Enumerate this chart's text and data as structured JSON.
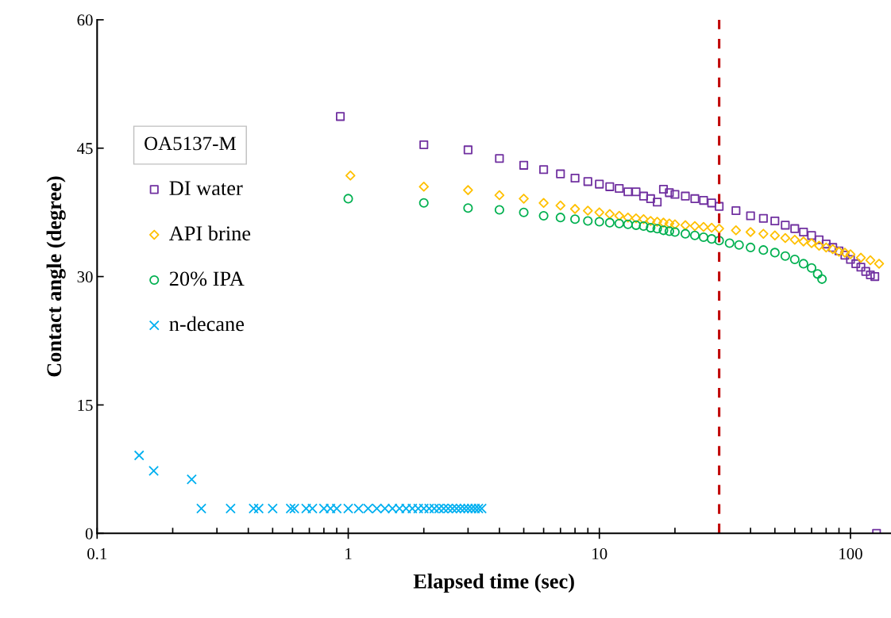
{
  "chart_data": {
    "type": "scatter",
    "xlabel": "Elapsed time (sec)",
    "ylabel": "Contact angle (degree)",
    "legend_title": "OA5137-M",
    "legend": "top left",
    "log": "x",
    "grid": false,
    "xlim": [
      0.1,
      145
    ],
    "xticks": [
      0.1,
      1,
      10,
      100
    ],
    "ylim": [
      0,
      60
    ],
    "yticks": [
      0,
      15,
      30,
      45,
      60
    ],
    "ref_lines": [
      {
        "axis": "x",
        "value": 30,
        "color": "#c00000",
        "line_style": "dashed"
      }
    ],
    "series": [
      {
        "name": "DI water",
        "color": "#7030a0",
        "marker": "square",
        "x": [
          0.93,
          2,
          3,
          4,
          5,
          6,
          7,
          8,
          9,
          10,
          11,
          12,
          13,
          14,
          15,
          16,
          17,
          18,
          19,
          20,
          22,
          24,
          26,
          28,
          30,
          35,
          40,
          45,
          50,
          55,
          60,
          65,
          70,
          75,
          80,
          85,
          90,
          95,
          100,
          105,
          110,
          115,
          120,
          125,
          127
        ],
        "values": [
          48.7,
          45.4,
          44.8,
          43.8,
          43.0,
          42.5,
          42.0,
          41.5,
          41.1,
          40.8,
          40.5,
          40.3,
          39.9,
          39.9,
          39.4,
          39.1,
          38.7,
          40.2,
          39.8,
          39.6,
          39.4,
          39.1,
          38.9,
          38.6,
          38.2,
          37.7,
          37.1,
          36.8,
          36.5,
          36.0,
          35.6,
          35.2,
          34.8,
          34.3,
          33.8,
          33.4,
          33.0,
          32.5,
          32.0,
          31.5,
          31.1,
          30.6,
          30.2,
          30.0,
          0
        ]
      },
      {
        "name": "API brine",
        "color": "#ffc000",
        "marker": "diamond",
        "x": [
          1.02,
          2,
          3,
          4,
          5,
          6,
          7,
          8,
          9,
          10,
          11,
          12,
          13,
          14,
          15,
          16,
          17,
          18,
          19,
          20,
          22,
          24,
          26,
          28,
          30,
          35,
          40,
          45,
          50,
          55,
          60,
          65,
          70,
          75,
          80,
          85,
          90,
          95,
          100,
          110,
          120,
          130
        ],
        "values": [
          41.8,
          40.5,
          40.1,
          39.5,
          39.1,
          38.6,
          38.3,
          37.9,
          37.7,
          37.5,
          37.3,
          37.1,
          36.9,
          36.8,
          36.7,
          36.5,
          36.4,
          36.3,
          36.2,
          36.1,
          36.0,
          35.9,
          35.8,
          35.7,
          35.6,
          35.4,
          35.2,
          35.0,
          34.8,
          34.5,
          34.3,
          34.1,
          33.9,
          33.6,
          33.4,
          33.2,
          32.9,
          32.8,
          32.6,
          32.2,
          31.9,
          31.5
        ]
      },
      {
        "name": "20% IPA",
        "color": "#00b050",
        "marker": "circle",
        "x": [
          1,
          2,
          3,
          4,
          5,
          6,
          7,
          8,
          9,
          10,
          11,
          12,
          13,
          14,
          15,
          16,
          17,
          18,
          19,
          20,
          22,
          24,
          26,
          28,
          30,
          33,
          36,
          40,
          45,
          50,
          55,
          60,
          65,
          70,
          74,
          77
        ],
        "values": [
          39.1,
          38.6,
          38.0,
          37.8,
          37.5,
          37.1,
          36.9,
          36.7,
          36.5,
          36.4,
          36.3,
          36.2,
          36.1,
          36.0,
          35.9,
          35.7,
          35.6,
          35.4,
          35.3,
          35.2,
          35.0,
          34.8,
          34.6,
          34.4,
          34.2,
          33.9,
          33.7,
          33.4,
          33.1,
          32.8,
          32.4,
          32.0,
          31.5,
          31.0,
          30.3,
          29.7
        ]
      },
      {
        "name": "n-decane",
        "color": "#00b0f0",
        "marker": "cross",
        "x": [
          0.147,
          0.168,
          0.238,
          0.26,
          0.34,
          0.42,
          0.44,
          0.5,
          0.59,
          0.61,
          0.68,
          0.72,
          0.8,
          0.85,
          0.9,
          1.0,
          1.1,
          1.2,
          1.3,
          1.4,
          1.5,
          1.6,
          1.7,
          1.8,
          1.9,
          2.0,
          2.1,
          2.2,
          2.3,
          2.4,
          2.5,
          2.6,
          2.7,
          2.8,
          2.9,
          3.0,
          3.1,
          3.2,
          3.3,
          3.4
        ],
        "values": [
          9.1,
          7.3,
          6.3,
          2.9,
          2.9,
          2.9,
          2.9,
          2.9,
          2.9,
          2.9,
          2.9,
          2.9,
          2.9,
          2.9,
          2.9,
          2.9,
          2.9,
          2.9,
          2.9,
          2.9,
          2.9,
          2.9,
          2.9,
          2.9,
          2.9,
          2.9,
          2.9,
          2.9,
          2.9,
          2.9,
          2.9,
          2.9,
          2.9,
          2.9,
          2.9,
          2.9,
          2.9,
          2.9,
          2.9,
          2.9
        ]
      }
    ]
  }
}
